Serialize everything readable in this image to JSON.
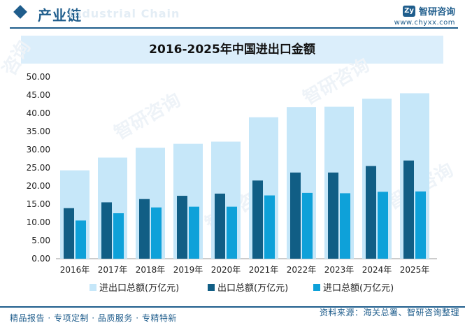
{
  "header": {
    "section_title": "产业链",
    "watermark_text": "Industrial Chain",
    "brand_name": "智研咨询",
    "brand_url": "www.chyxx.com",
    "logo_glyph": "Zy"
  },
  "chart_title": "2016-2025年中国进出口金额",
  "footer": {
    "left_text": "精品报告 · 专项定制 · 品质服务 · 专精特新",
    "source_text": "资料来源：海关总署、智研咨询整理"
  },
  "watermark": {
    "text": "智研咨询",
    "side_text": "咨询"
  },
  "colors": {
    "brand": "#1f5d8c",
    "total": "#c6e7f9",
    "export": "#115e85",
    "import": "#0ea1d9",
    "title_bg": "#dbeefb"
  },
  "chart_data": {
    "type": "bar",
    "title": "2016-2025年中国进出口金额",
    "categories": [
      "2016年",
      "2017年",
      "2018年",
      "2019年",
      "2020年",
      "2021年",
      "2022年",
      "2023年",
      "2024年",
      "2025年"
    ],
    "series": [
      {
        "name": "进出口总额(万亿元)",
        "values": [
          24.3,
          27.8,
          30.5,
          31.6,
          32.2,
          38.9,
          41.7,
          41.8,
          44.0,
          45.5
        ]
      },
      {
        "name": "出口总额(万亿元)",
        "values": [
          13.9,
          15.5,
          16.4,
          17.3,
          17.9,
          21.5,
          23.7,
          23.7,
          25.5,
          27.0
        ]
      },
      {
        "name": "进口总额(万亿元)",
        "values": [
          10.5,
          12.5,
          14.1,
          14.3,
          14.3,
          17.4,
          18.1,
          18.0,
          18.4,
          18.5
        ]
      }
    ],
    "yticks": [
      "0.00",
      "5.00",
      "10.00",
      "15.00",
      "20.00",
      "25.00",
      "30.00",
      "35.00",
      "40.00",
      "45.00",
      "50.00"
    ],
    "ylim": [
      0,
      50
    ],
    "xlabel": "",
    "ylabel": "",
    "legend_position": "bottom-center"
  }
}
